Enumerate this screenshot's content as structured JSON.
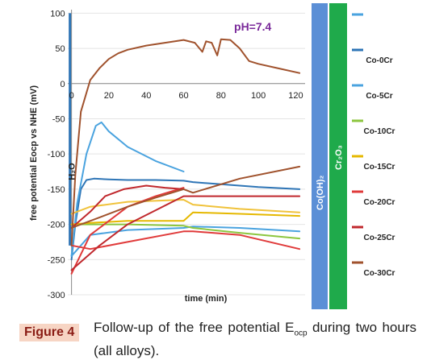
{
  "chart_data": {
    "type": "line",
    "title": "",
    "xlabel": "time (min)",
    "ylabel": "free potential Eocp vs NHE (mV)",
    "xlim": [
      -2,
      125
    ],
    "ylim": [
      -300,
      105
    ],
    "xticks": [
      0,
      20,
      40,
      60,
      80,
      100,
      120
    ],
    "yticks": [
      100,
      50,
      0,
      -50,
      -100,
      -150,
      -200,
      -250,
      -300
    ],
    "x_tick_labels": [
      "0",
      "20",
      "40",
      "60",
      "80",
      "100",
      "120"
    ],
    "y_tick_labels": [
      "100",
      "50",
      "0",
      "-50",
      "-100",
      "-150",
      "-200",
      "-250",
      "-300"
    ],
    "annotations": [
      {
        "text": "pH=7.4",
        "x": 97,
        "y": 75
      },
      {
        "text": "H₂O",
        "x": -2,
        "y": -125
      }
    ],
    "reference_bands": [
      {
        "text": "Co(OH)₂",
        "y": -155,
        "color": "#5b8fd6"
      },
      {
        "text": "Cr₂O₃",
        "y": -105,
        "color": "#1faa4b"
      }
    ],
    "legend_position": "right",
    "series": [
      {
        "name": "Co-0Cr",
        "color": "#2e75b6",
        "x": [
          0,
          2,
          5,
          8,
          12,
          20,
          30,
          45,
          60,
          65,
          80,
          100,
          122
        ],
        "y": [
          -250,
          -200,
          -150,
          -137,
          -135,
          -136,
          -137,
          -137,
          -138,
          -140,
          -143,
          -147,
          -150
        ]
      },
      {
        "name": "Co-5Cr",
        "color": "#4aa3df",
        "x": [
          0,
          3,
          8,
          13,
          16,
          20,
          30,
          45,
          60
        ],
        "y": [
          -245,
          -170,
          -100,
          -60,
          -55,
          -68,
          -90,
          -110,
          -125
        ]
      },
      {
        "name": "Co-5Cr",
        "color": "#4aa3df",
        "x": [
          0,
          10,
          30,
          60,
          65,
          90,
          122
        ],
        "y": [
          -245,
          -215,
          -208,
          -205,
          -203,
          -205,
          -210
        ]
      },
      {
        "name": "Co-10Cr",
        "color": "#8cc63f",
        "x": [
          0,
          10,
          30,
          60,
          65,
          90,
          122
        ],
        "y": [
          -200,
          -200,
          -200,
          -202,
          -205,
          -212,
          -220
        ]
      },
      {
        "name": "Co-10Cr",
        "color": "#f0c23a",
        "x": [
          0,
          10,
          30,
          60,
          65,
          90,
          122
        ],
        "y": [
          -185,
          -175,
          -168,
          -165,
          -172,
          -178,
          -183
        ]
      },
      {
        "name": "Co-15Cr",
        "color": "#e5b800",
        "x": [
          0,
          10,
          30,
          60,
          65,
          90,
          122
        ],
        "y": [
          -200,
          -198,
          -195,
          -195,
          -183,
          -185,
          -188
        ]
      },
      {
        "name": "Co-20Cr",
        "color": "#e03a3a",
        "x": [
          0,
          10,
          30,
          45,
          60
        ],
        "y": [
          -270,
          -215,
          -175,
          -160,
          -148
        ]
      },
      {
        "name": "Co-20Cr",
        "color": "#e03a3a",
        "x": [
          0,
          10,
          30,
          60,
          65,
          90,
          122
        ],
        "y": [
          -230,
          -235,
          -225,
          -210,
          -210,
          -215,
          -235
        ]
      },
      {
        "name": "Co-25Cr",
        "color": "#c0282d",
        "x": [
          0,
          10,
          18,
          28,
          40,
          50,
          60
        ],
        "y": [
          -205,
          -182,
          -160,
          -150,
          -145,
          -148,
          -150
        ]
      },
      {
        "name": "Co-25Cr",
        "color": "#c0282d",
        "x": [
          0,
          15,
          30,
          45,
          60,
          65,
          90,
          122
        ],
        "y": [
          -265,
          -230,
          -200,
          -180,
          -160,
          -160,
          -160,
          -160
        ]
      },
      {
        "name": "Co-30Cr",
        "color": "#a0522d",
        "x": [
          0,
          2,
          5,
          10,
          15,
          20,
          25,
          30,
          40,
          50,
          60,
          66,
          70,
          72,
          75,
          78,
          80,
          85,
          90,
          95,
          100,
          110,
          122
        ],
        "y": [
          -230,
          -130,
          -40,
          5,
          22,
          35,
          43,
          48,
          54,
          58,
          62,
          58,
          45,
          60,
          58,
          40,
          63,
          62,
          50,
          32,
          28,
          22,
          15
        ]
      },
      {
        "name": "Co-30Cr",
        "color": "#a0522d",
        "x": [
          0,
          15,
          30,
          45,
          60,
          65,
          90,
          122
        ],
        "y": [
          -205,
          -190,
          -175,
          -162,
          -150,
          -155,
          -135,
          -118
        ]
      }
    ]
  },
  "legend_items": [
    {
      "label": "",
      "color": "#4aa3df"
    },
    {
      "label": "Co-0Cr",
      "color": "#2e75b6"
    },
    {
      "label": "Co-5Cr",
      "color": "#4aa3df"
    },
    {
      "label": "Co-10Cr",
      "color": "#8cc63f"
    },
    {
      "label": "Co-15Cr",
      "color": "#e5b800"
    },
    {
      "label": "Co-20Cr",
      "color": "#e03a3a"
    },
    {
      "label": "Co-25Cr",
      "color": "#c0282d"
    },
    {
      "label": "Co-30Cr",
      "color": "#a0522d"
    }
  ],
  "caption": {
    "figure_label": "Figure 4",
    "text_before": "Follow-up of the free potential E",
    "text_sub": "ocp",
    "text_after": " during two hours (all alloys)."
  }
}
